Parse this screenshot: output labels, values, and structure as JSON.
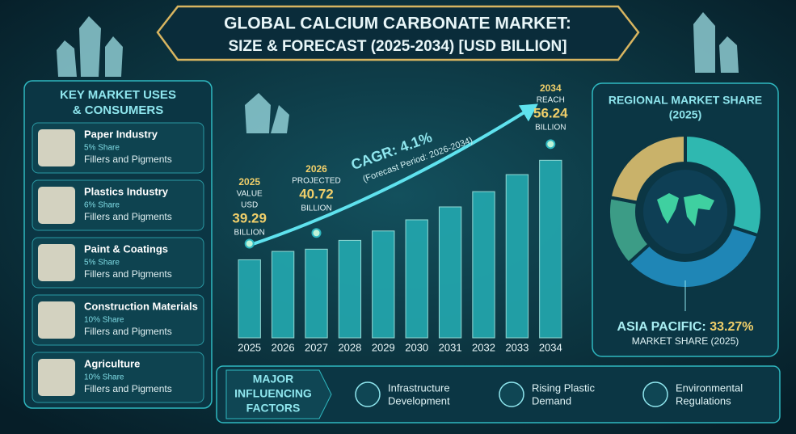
{
  "title": [
    "GLOBAL CALCIUM CARBONATE MARKET:",
    "SIZE & FORECAST (2025-2034) [USD BILLION]"
  ],
  "uses": {
    "title": [
      "KEY MARKET USES",
      "& CONSUMERS"
    ],
    "items": [
      {
        "name": "Paper Industry",
        "share": "5% Share",
        "desc": "Fillers and Pigments"
      },
      {
        "name": "Plastics Industry",
        "share": "6% Share",
        "desc": "Fillers and Pigments"
      },
      {
        "name": "Paint & Coatings",
        "share": "5% Share",
        "desc": "Fillers and Pigments"
      },
      {
        "name": "Construction Materials",
        "share": "10% Share",
        "desc": "Fillers and Pigments"
      },
      {
        "name": "Agriculture",
        "share": "10% Share",
        "desc": "Fillers and Pigments"
      }
    ]
  },
  "chart_data": [
    {
      "type": "bar",
      "categories": [
        "2025",
        "2026",
        "2027",
        "2028",
        "2029",
        "2030",
        "2031",
        "2032",
        "2033",
        "2034"
      ],
      "values": [
        39.29,
        40.72,
        41.1,
        42.6,
        44.2,
        46.1,
        48.3,
        50.9,
        53.8,
        56.24
      ],
      "color": "#23a7ae",
      "ylim": [
        26,
        60
      ],
      "annotations": {
        "first": [
          "2025",
          "VALUE",
          "USD",
          "39.29",
          "BILLION"
        ],
        "second": [
          "2026",
          "PROJECTED",
          "40.72",
          "BILLION"
        ],
        "last": [
          "2034",
          "REACH",
          "56.24",
          "BILLION"
        ],
        "cagr": "CAGR: 4.1%",
        "period": "(Forecast Period: 2026-2034)"
      }
    },
    {
      "type": "pie",
      "title": [
        "REGIONAL MARKET SHARE",
        "(2025)"
      ],
      "categories": [
        null,
        "ASIA PACIFIC",
        null,
        null
      ],
      "values": [
        30,
        33.27,
        14.73,
        22
      ],
      "colors": [
        "#2fb8b0",
        "#1f86b6",
        "#3c9c86",
        "#c9b26a"
      ],
      "callout": {
        "value": "33.27%",
        "label": "ASIA PACIFIC:",
        "sub": "MARKET SHARE (2025)"
      }
    }
  ],
  "factors": {
    "title": [
      "MAJOR",
      "INFLUENCING",
      "FACTORS"
    ],
    "items": [
      [
        "Infrastructure",
        "Development"
      ],
      [
        "Rising Plastic",
        "Demand"
      ],
      [
        "Environmental",
        "Regulations"
      ]
    ]
  }
}
